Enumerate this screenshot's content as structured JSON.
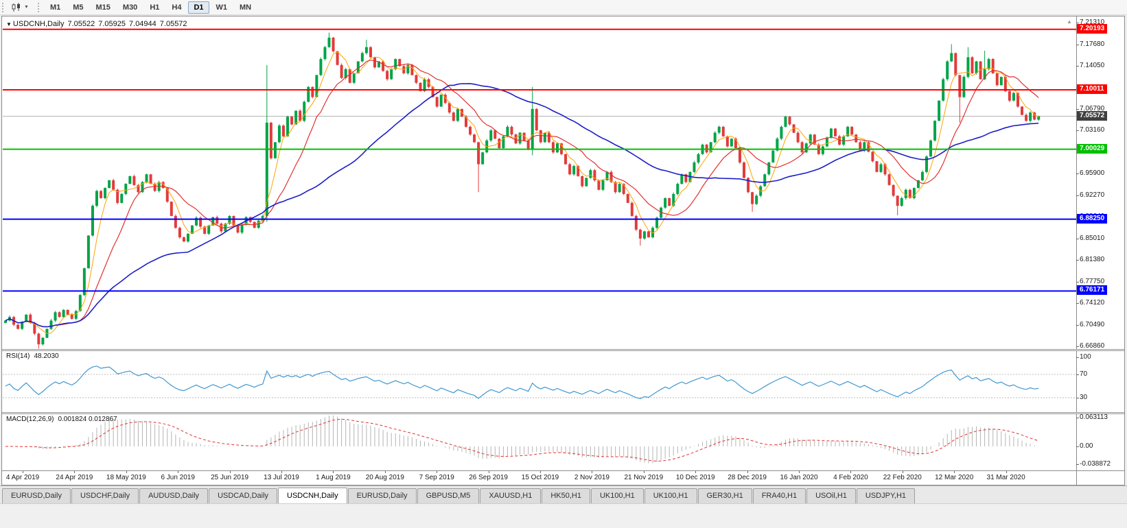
{
  "toolbar": {
    "timeframes": [
      "M1",
      "M5",
      "M15",
      "M30",
      "H1",
      "H4",
      "D1",
      "W1",
      "MN"
    ],
    "active_timeframe": "D1"
  },
  "chart": {
    "collapse_icon": "▼",
    "symbol_period": "USDCNH,Daily",
    "quote_open": "7.05522",
    "quote_high": "7.05925",
    "quote_low": "7.04944",
    "quote_close": "7.05572",
    "scroll_marker": "▲"
  },
  "rsi": {
    "title": "RSI(14)",
    "value": "48.2030",
    "period": 14,
    "levels": [
      "100",
      "70",
      "30"
    ],
    "color": "#3f97d0"
  },
  "macd": {
    "title": "MACD(12,26,9)",
    "values": "0.001824 0.012867",
    "fast": 12,
    "slow": 26,
    "signal": 9,
    "axis": [
      "0.063113",
      "0.00",
      "-0.038872"
    ],
    "hist_color": "#b4b4b4",
    "signal_color": "#e03030"
  },
  "tabs": {
    "items": [
      "EURUSD,Daily",
      "USDCHF,Daily",
      "AUDUSD,Daily",
      "USDCAD,Daily",
      "USDCNH,Daily",
      "EURUSD,Daily",
      "GBPUSD,M5",
      "XAUUSD,H1",
      "HK50,H1",
      "UK100,H1",
      "UK100,H1",
      "GER30,H1",
      "FRA40,H1",
      "USOil,H1",
      "USDJPY,H1"
    ],
    "active_index": 4
  },
  "chart_data": {
    "type": "candlestick",
    "title": "USDCNH,Daily",
    "symbol": "USDCNH",
    "timeframe": "Daily",
    "ylim": [
      6.6686,
      7.2131
    ],
    "grid": false,
    "legend": false,
    "y_axis_labels": [
      "7.21310",
      "7.17680",
      "7.14050",
      "7.10420",
      "7.06790",
      "7.03160",
      "6.99530",
      "6.95900",
      "6.92270",
      "6.88640",
      "6.85010",
      "6.81380",
      "6.77750",
      "6.74120",
      "6.70490",
      "6.66860"
    ],
    "x_labels": [
      "4 Apr 2019",
      "24 Apr 2019",
      "18 May 2019",
      "6 Jun 2019",
      "25 Jun 2019",
      "13 Jul 2019",
      "1 Aug 2019",
      "20 Aug 2019",
      "7 Sep 2019",
      "26 Sep 2019",
      "15 Oct 2019",
      "2 Nov 2019",
      "21 Nov 2019",
      "10 Dec 2019",
      "28 Dec 2019",
      "16 Jan 2020",
      "4 Feb 2020",
      "22 Feb 2020",
      "12 Mar 2020",
      "31 Mar 2020"
    ],
    "hlines": [
      {
        "label": "7.20193",
        "value": 7.20193,
        "color": "#ff0000",
        "width": 2
      },
      {
        "label": "7.10011",
        "value": 7.10011,
        "color": "#ff0000",
        "width": 2
      },
      {
        "label": "7.00029",
        "value": 7.00029,
        "color": "#00c000",
        "width": 2
      },
      {
        "label": "6.88250",
        "value": 6.8825,
        "color": "#0000ff",
        "width": 2
      },
      {
        "label": "6.76171",
        "value": 6.76171,
        "color": "#0000ff",
        "width": 2
      }
    ],
    "current_price": {
      "label": "7.05572",
      "value": 7.05572,
      "line_color": "#b3b3b3",
      "box_color": "#3f3f3f"
    },
    "up_color": "#00a448",
    "down_color": "#e23b3b",
    "moving_averages": [
      {
        "period": 5,
        "color": "#ffa200",
        "width": 1
      },
      {
        "period": 13,
        "color": "#e03030",
        "width": 1.2
      },
      {
        "period": 45,
        "color": "#1c1cc8",
        "width": 1.6
      }
    ],
    "first_open": 6.708,
    "closes": [
      6.712,
      6.718,
      6.705,
      6.698,
      6.71,
      6.722,
      6.708,
      6.69,
      6.672,
      6.683,
      6.698,
      6.712,
      6.726,
      6.718,
      6.73,
      6.722,
      6.715,
      6.728,
      6.755,
      6.8,
      6.855,
      6.905,
      6.93,
      6.918,
      6.935,
      6.948,
      6.932,
      6.91,
      6.925,
      6.942,
      6.955,
      6.94,
      6.928,
      6.945,
      6.958,
      6.942,
      6.93,
      6.945,
      6.935,
      6.912,
      6.888,
      6.868,
      6.852,
      6.845,
      6.858,
      6.872,
      6.885,
      6.87,
      6.858,
      6.872,
      6.886,
      6.875,
      6.862,
      6.875,
      6.888,
      6.872,
      6.86,
      6.873,
      6.886,
      6.878,
      6.868,
      6.88,
      6.888,
      7.045,
      6.985,
      7.012,
      7.04,
      7.022,
      7.055,
      7.042,
      7.065,
      7.048,
      7.08,
      7.105,
      7.088,
      7.125,
      7.152,
      7.172,
      7.188,
      7.165,
      7.142,
      7.12,
      7.135,
      7.112,
      7.128,
      7.148,
      7.162,
      7.172,
      7.155,
      7.138,
      7.148,
      7.132,
      7.118,
      7.135,
      7.152,
      7.14,
      7.128,
      7.142,
      7.125,
      7.112,
      7.098,
      7.118,
      7.105,
      7.088,
      7.072,
      7.092,
      7.078,
      7.062,
      7.048,
      7.068,
      7.055,
      7.038,
      7.025,
      7.012,
      6.975,
      6.995,
      7.015,
      7.032,
      7.018,
      7.002,
      7.022,
      7.038,
      7.025,
      7.01,
      7.028,
      7.015,
      7.0,
      7.068,
      7.032,
      7.012,
      7.028,
      7.012,
      6.995,
      7.01,
      6.992,
      6.975,
      6.958,
      6.972,
      6.955,
      6.938,
      6.952,
      6.965,
      6.948,
      6.932,
      6.948,
      6.962,
      6.945,
      6.928,
      6.942,
      6.925,
      6.91,
      6.888,
      6.865,
      6.85,
      6.862,
      6.852,
      6.868,
      6.885,
      6.902,
      6.918,
      6.905,
      6.925,
      6.942,
      6.958,
      6.945,
      6.962,
      6.978,
      6.992,
      7.008,
      6.995,
      7.012,
      7.028,
      7.038,
      7.022,
      7.005,
      7.018,
      7.002,
      6.978,
      6.952,
      6.928,
      6.908,
      6.922,
      6.938,
      6.958,
      6.978,
      6.998,
      7.018,
      7.038,
      7.055,
      7.042,
      7.028,
      7.012,
      6.995,
      7.01,
      7.025,
      7.008,
      6.992,
      7.005,
      7.02,
      7.035,
      7.022,
      7.008,
      7.022,
      7.038,
      7.025,
      7.012,
      6.998,
      7.012,
      6.996,
      6.98,
      6.962,
      6.975,
      6.958,
      6.94,
      6.922,
      6.905,
      6.918,
      6.932,
      6.918,
      6.935,
      6.948,
      6.962,
      6.988,
      7.015,
      7.048,
      7.082,
      7.118,
      7.148,
      7.162,
      7.125,
      7.088,
      7.122,
      7.155,
      7.128,
      7.148,
      7.118,
      7.135,
      7.152,
      7.128,
      7.108,
      7.122,
      7.098,
      7.082,
      7.095,
      7.072,
      7.058,
      7.048,
      7.062,
      7.05,
      7.0557
    ],
    "wick_overrides": {
      "8": {
        "l": 6.665
      },
      "63": {
        "h": 7.142,
        "l": 6.878
      },
      "78": {
        "h": 7.1965
      },
      "87": {
        "h": 7.1845
      },
      "114": {
        "l": 6.928
      },
      "127": {
        "h": 7.105,
        "l": 6.99
      },
      "153": {
        "l": 6.838
      },
      "180": {
        "l": 6.895
      },
      "215": {
        "l": 6.889
      },
      "228": {
        "h": 7.177
      },
      "230": {
        "l": 7.045
      },
      "232": {
        "h": 7.172
      },
      "236": {
        "h": 7.166
      }
    }
  }
}
